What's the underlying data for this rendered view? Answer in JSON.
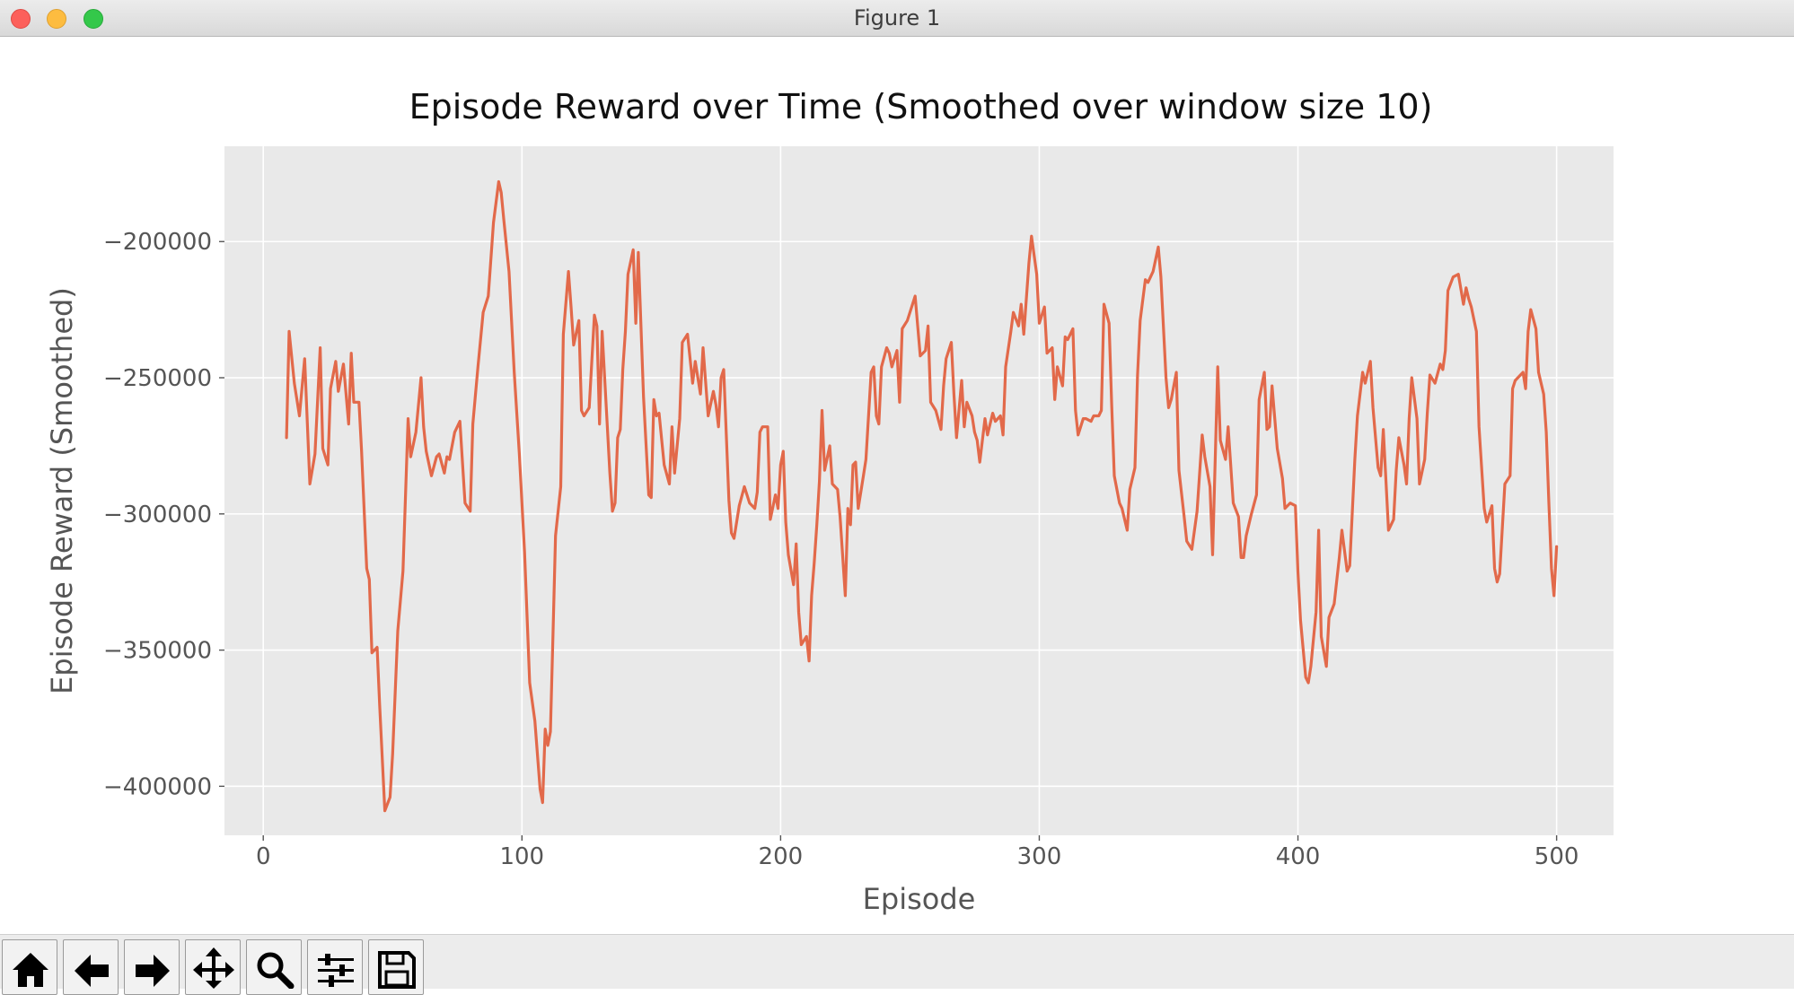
{
  "window": {
    "title": "Figure 1"
  },
  "toolbar": {
    "buttons": [
      {
        "icon": "home-icon"
      },
      {
        "icon": "back-arrow-icon"
      },
      {
        "icon": "forward-arrow-icon"
      },
      {
        "icon": "pan-move-icon"
      },
      {
        "icon": "zoom-magnifier-icon"
      },
      {
        "icon": "configure-subplots-icon"
      },
      {
        "icon": "save-figure-icon"
      }
    ]
  },
  "colors": {
    "line": "#e2694a",
    "axes_bg": "#e9e9e9",
    "grid": "#ffffff"
  },
  "chart_data": {
    "type": "line",
    "title": "Episode Reward over Time (Smoothed over window size 10)",
    "xlabel": "Episode",
    "ylabel": "Episode Reward (Smoothed)",
    "xlim": [
      -15,
      522
    ],
    "ylim": [
      -418000,
      -165000
    ],
    "xticks": [
      0,
      100,
      200,
      300,
      400,
      500
    ],
    "xtick_labels": [
      "0",
      "100",
      "200",
      "300",
      "400",
      "500"
    ],
    "yticks": [
      -200000,
      -250000,
      -300000,
      -350000,
      -400000
    ],
    "ytick_labels": [
      "−200000",
      "−250000",
      "−300000",
      "−350000",
      "−400000"
    ],
    "grid": true,
    "series": [
      {
        "x": [
          9,
          10,
          12,
          14,
          16,
          18,
          20,
          22,
          23,
          25,
          26,
          28,
          29,
          31,
          33,
          34,
          35,
          37,
          38,
          40,
          41,
          42,
          44,
          45,
          47,
          49,
          50,
          52,
          54,
          56,
          57,
          59,
          61,
          62,
          63,
          65,
          67,
          68,
          70,
          71,
          72,
          74,
          76,
          78,
          80,
          81,
          83,
          85,
          87,
          89,
          91,
          92,
          93,
          95,
          97,
          99,
          101,
          103,
          105,
          107,
          108,
          109,
          110,
          111,
          112,
          113,
          115,
          116,
          118,
          119,
          120,
          122,
          123,
          124,
          126,
          128,
          129,
          130,
          131,
          133,
          134,
          135,
          136,
          137,
          138,
          139,
          140,
          141,
          143,
          144,
          145,
          147,
          148,
          149,
          150,
          151,
          152,
          153,
          155,
          157,
          158,
          159,
          161,
          162,
          164,
          166,
          167,
          169,
          170,
          172,
          174,
          175,
          176,
          177,
          178,
          180,
          181,
          182,
          184,
          186,
          188,
          190,
          191,
          192,
          193,
          195,
          196,
          198,
          199,
          200,
          201,
          202,
          203,
          205,
          206,
          207,
          208,
          210,
          211,
          212,
          213,
          214,
          215,
          216,
          217,
          219,
          220,
          222,
          223,
          225,
          226,
          227,
          228,
          229,
          230,
          232,
          233,
          235,
          236,
          237,
          238,
          239,
          241,
          242,
          243,
          245,
          246,
          247,
          249,
          251,
          252,
          254,
          256,
          257,
          258,
          260,
          262,
          263,
          264,
          266,
          267,
          268,
          270,
          271,
          272,
          274,
          275,
          276,
          277,
          279,
          280,
          282,
          283,
          285,
          286,
          287,
          289,
          290,
          292,
          293,
          294,
          296,
          297,
          299,
          300,
          302,
          303,
          305,
          306,
          307,
          309,
          310,
          311,
          313,
          314,
          315,
          317,
          318,
          320,
          321,
          323,
          324,
          325,
          327,
          328,
          329,
          331,
          332,
          334,
          335,
          337,
          338,
          339,
          341,
          342,
          344,
          346,
          347,
          349,
          350,
          351,
          353,
          354,
          356,
          357,
          359,
          361,
          363,
          364,
          366,
          367,
          369,
          370,
          372,
          373,
          375,
          377,
          378,
          379,
          380,
          382,
          384,
          385,
          387,
          388,
          389,
          390,
          392,
          394,
          395,
          397,
          399,
          400,
          401,
          403,
          404,
          405,
          407,
          408,
          409,
          411,
          412,
          414,
          416,
          417,
          419,
          420,
          422,
          423,
          425,
          426,
          428,
          429,
          431,
          432,
          433,
          435,
          437,
          438,
          439,
          441,
          442,
          443,
          444,
          446,
          447,
          449,
          450,
          451,
          453,
          455,
          456,
          457,
          458,
          460,
          462,
          464,
          465,
          466,
          467,
          469,
          470,
          472,
          473,
          475,
          476,
          477,
          478,
          480,
          482,
          483,
          484,
          486,
          487,
          488,
          489,
          490,
          492,
          493,
          495,
          496,
          497,
          498,
          499,
          500
        ],
        "y": [
          -272000,
          -233000,
          -252000,
          -264000,
          -243000,
          -289000,
          -278000,
          -239000,
          -276000,
          -282000,
          -254000,
          -244000,
          -255000,
          -245000,
          -267000,
          -241000,
          -259000,
          -259000,
          -277000,
          -320000,
          -324000,
          -351000,
          -349000,
          -370000,
          -409000,
          -404000,
          -388000,
          -343000,
          -321000,
          -265000,
          -279000,
          -270000,
          -250000,
          -268000,
          -277000,
          -286000,
          -279000,
          -278000,
          -285000,
          -279000,
          -280000,
          -270000,
          -266000,
          -296000,
          -299000,
          -267000,
          -246000,
          -226000,
          -220000,
          -193000,
          -178000,
          -182000,
          -192000,
          -211000,
          -248000,
          -278000,
          -314000,
          -362000,
          -376000,
          -401000,
          -406000,
          -379000,
          -385000,
          -380000,
          -344000,
          -308000,
          -290000,
          -234000,
          -211000,
          -224000,
          -238000,
          -229000,
          -262000,
          -264000,
          -261000,
          -227000,
          -231000,
          -267000,
          -233000,
          -268000,
          -285000,
          -299000,
          -296000,
          -272000,
          -269000,
          -247000,
          -233000,
          -212000,
          -203000,
          -230000,
          -204000,
          -257000,
          -275000,
          -293000,
          -294000,
          -258000,
          -264000,
          -263000,
          -282000,
          -289000,
          -268000,
          -285000,
          -265000,
          -237000,
          -234000,
          -252000,
          -244000,
          -256000,
          -239000,
          -264000,
          -255000,
          -260000,
          -268000,
          -250000,
          -247000,
          -295000,
          -307000,
          -309000,
          -297000,
          -290000,
          -296000,
          -298000,
          -292000,
          -270000,
          -268000,
          -268000,
          -302000,
          -293000,
          -298000,
          -282000,
          -277000,
          -303000,
          -315000,
          -326000,
          -311000,
          -336000,
          -348000,
          -345000,
          -354000,
          -330000,
          -318000,
          -304000,
          -288000,
          -262000,
          -284000,
          -275000,
          -289000,
          -291000,
          -301000,
          -330000,
          -298000,
          -304000,
          -282000,
          -281000,
          -298000,
          -286000,
          -280000,
          -248000,
          -246000,
          -264000,
          -267000,
          -246000,
          -239000,
          -241000,
          -246000,
          -240000,
          -259000,
          -232000,
          -229000,
          -223000,
          -220000,
          -242000,
          -240000,
          -231000,
          -259000,
          -262000,
          -269000,
          -253000,
          -243000,
          -237000,
          -256000,
          -272000,
          -251000,
          -268000,
          -259000,
          -264000,
          -270000,
          -273000,
          -281000,
          -265000,
          -271000,
          -263000,
          -266000,
          -264000,
          -271000,
          -246000,
          -233000,
          -226000,
          -231000,
          -223000,
          -234000,
          -208000,
          -198000,
          -212000,
          -230000,
          -224000,
          -241000,
          -239000,
          -258000,
          -246000,
          -253000,
          -235000,
          -236000,
          -232000,
          -262000,
          -271000,
          -265000,
          -265000,
          -266000,
          -264000,
          -264000,
          -262000,
          -223000,
          -230000,
          -260000,
          -286000,
          -296000,
          -298000,
          -306000,
          -291000,
          -283000,
          -249000,
          -229000,
          -214000,
          -215000,
          -211000,
          -202000,
          -213000,
          -250000,
          -261000,
          -258000,
          -248000,
          -284000,
          -301000,
          -310000,
          -313000,
          -299000,
          -271000,
          -279000,
          -290000,
          -315000,
          -246000,
          -273000,
          -280000,
          -268000,
          -296000,
          -301000,
          -316000,
          -316000,
          -308000,
          -300000,
          -293000,
          -258000,
          -248000,
          -269000,
          -268000,
          -253000,
          -276000,
          -287000,
          -298000,
          -296000,
          -297000,
          -321000,
          -339000,
          -360000,
          -362000,
          -356000,
          -336000,
          -306000,
          -345000,
          -356000,
          -338000,
          -333000,
          -316000,
          -306000,
          -321000,
          -319000,
          -280000,
          -264000,
          -248000,
          -252000,
          -244000,
          -261000,
          -283000,
          -286000,
          -269000,
          -306000,
          -302000,
          -284000,
          -272000,
          -282000,
          -289000,
          -265000,
          -250000,
          -265000,
          -289000,
          -280000,
          -263000,
          -249000,
          -252000,
          -245000,
          -247000,
          -240000,
          -218000,
          -213000,
          -212000,
          -223000,
          -217000,
          -221000,
          -224000,
          -233000,
          -268000,
          -298000,
          -303000,
          -297000,
          -320000,
          -325000,
          -322000,
          -289000,
          -286000,
          -254000,
          -251000,
          -249000,
          -248000,
          -254000,
          -233000,
          -225000,
          -232000,
          -248000,
          -256000,
          -270000,
          -296000,
          -320000,
          -330000,
          -312000
        ]
      }
    ]
  }
}
